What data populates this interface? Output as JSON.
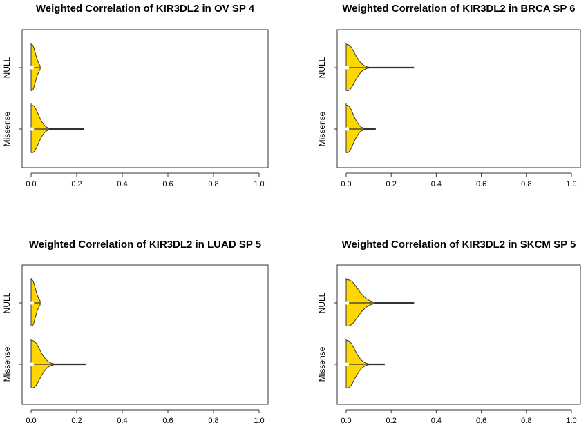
{
  "figure": {
    "fill_color": "#FFD700",
    "stroke_color": "#333333"
  },
  "chart_data": [
    {
      "type": "violin",
      "title": "Weighted Correlation of KIR3DL2 in OV SP 4",
      "xlim": [
        0,
        1
      ],
      "xticks": [
        "0.0",
        "0.2",
        "0.4",
        "0.6",
        "0.8",
        "1.0"
      ],
      "categories": [
        "Missense",
        "NULL"
      ],
      "series": [
        {
          "name": "NULL",
          "max": 0.04,
          "median": 0.0,
          "width": 0.2,
          "spread": 0.03
        },
        {
          "name": "Missense",
          "max": 0.23,
          "median": 0.0,
          "width": 0.55,
          "spread": 0.05
        }
      ]
    },
    {
      "type": "violin",
      "title": "Weighted Correlation of KIR3DL2 in BRCA SP 6",
      "xlim": [
        0,
        1
      ],
      "xticks": [
        "0.0",
        "0.2",
        "0.4",
        "0.6",
        "0.8",
        "1.0"
      ],
      "categories": [
        "Missense",
        "NULL"
      ],
      "series": [
        {
          "name": "NULL",
          "max": 0.3,
          "median": 0.0,
          "width": 0.72,
          "spread": 0.06
        },
        {
          "name": "Missense",
          "max": 0.13,
          "median": 0.0,
          "width": 0.32,
          "spread": 0.05
        }
      ]
    },
    {
      "type": "violin",
      "title": "Weighted Correlation of KIR3DL2 in LUAD SP 5",
      "xlim": [
        0,
        1
      ],
      "xticks": [
        "0.0",
        "0.2",
        "0.4",
        "0.6",
        "0.8",
        "1.0"
      ],
      "categories": [
        "Missense",
        "NULL"
      ],
      "series": [
        {
          "name": "NULL",
          "max": 0.04,
          "median": 0.0,
          "width": 0.2,
          "spread": 0.03
        },
        {
          "name": "Missense",
          "max": 0.24,
          "median": 0.0,
          "width": 0.62,
          "spread": 0.06
        }
      ]
    },
    {
      "type": "violin",
      "title": "Weighted Correlation of KIR3DL2 in SKCM SP 5",
      "xlim": [
        0,
        1
      ],
      "xticks": [
        "0.0",
        "0.2",
        "0.4",
        "0.6",
        "0.8",
        "1.0"
      ],
      "categories": [
        "Missense",
        "NULL"
      ],
      "series": [
        {
          "name": "NULL",
          "max": 0.3,
          "median": 0.0,
          "width": 0.82,
          "spread": 0.08
        },
        {
          "name": "Missense",
          "max": 0.17,
          "median": 0.0,
          "width": 0.38,
          "spread": 0.06
        }
      ]
    }
  ]
}
